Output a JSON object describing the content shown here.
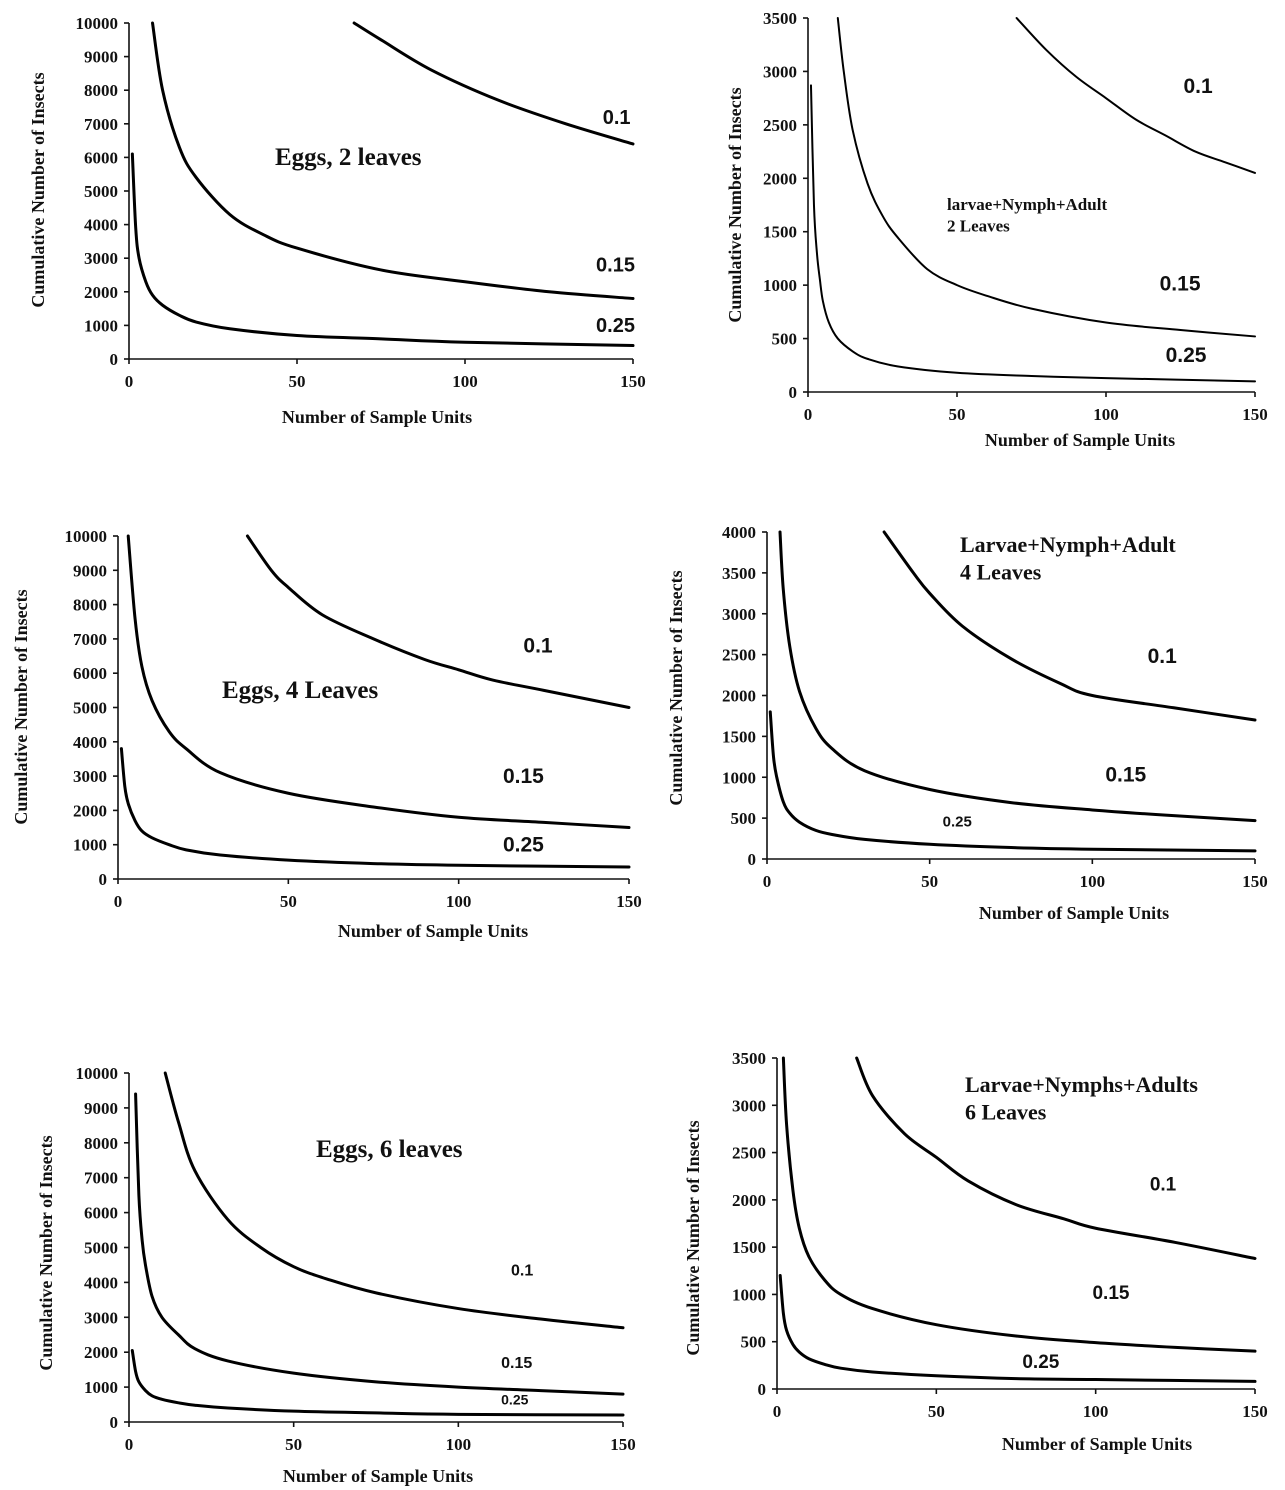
{
  "chart_data": [
    {
      "type": "line",
      "title_lines": [
        "Eggs, 2 leaves"
      ],
      "xlabel": "Number  of Sample Units",
      "ylabel": "Cumulative  Number  of Insects",
      "xlim": [
        0,
        150
      ],
      "ylim": [
        0,
        10000
      ],
      "xticks": [
        0,
        50,
        100,
        150
      ],
      "yticks": [
        0,
        1000,
        2000,
        3000,
        4000,
        5000,
        6000,
        7000,
        8000,
        9000,
        10000
      ],
      "grid": false,
      "series": [
        {
          "label": "0.1",
          "x": [
            67,
            75,
            90,
            110,
            130,
            150
          ],
          "y": [
            10000,
            9500,
            8600,
            7700,
            7000,
            6400
          ]
        },
        {
          "label": "0.15",
          "x": [
            7,
            10,
            15,
            20,
            30,
            40,
            50,
            75,
            100,
            125,
            150
          ],
          "y": [
            10000,
            8000,
            6300,
            5400,
            4300,
            3700,
            3300,
            2650,
            2300,
            2000,
            1800
          ]
        },
        {
          "label": "0.25",
          "x": [
            1,
            2,
            3,
            5,
            7,
            10,
            15,
            20,
            30,
            50,
            75,
            100,
            150
          ],
          "y": [
            6100,
            3900,
            3000,
            2300,
            1900,
            1600,
            1300,
            1100,
            900,
            700,
            600,
            500,
            400
          ]
        }
      ]
    },
    {
      "type": "line",
      "title_lines": [
        "larvae+Nymph+Adult",
        "2 Leaves"
      ],
      "xlabel": "Number  of Sample Units",
      "ylabel": "Cumulative  Number  of Insects",
      "xlim": [
        0,
        150
      ],
      "ylim": [
        0,
        3500
      ],
      "xticks": [
        0,
        50,
        100,
        150
      ],
      "yticks": [
        0,
        500,
        1000,
        1500,
        2000,
        2500,
        3000,
        3500
      ],
      "grid": false,
      "series": [
        {
          "label": "0.1",
          "x": [
            70,
            80,
            90,
            100,
            110,
            120,
            130,
            140,
            150
          ],
          "y": [
            3500,
            3200,
            2950,
            2750,
            2550,
            2400,
            2250,
            2150,
            2050
          ]
        },
        {
          "label": "0.15",
          "x": [
            10,
            12,
            15,
            20,
            25,
            30,
            40,
            50,
            60,
            75,
            100,
            125,
            150
          ],
          "y": [
            3500,
            3000,
            2450,
            1950,
            1650,
            1450,
            1150,
            1000,
            900,
            780,
            650,
            580,
            520
          ]
        },
        {
          "label": "0.25",
          "x": [
            1,
            2,
            3,
            4,
            5,
            7,
            10,
            15,
            20,
            30,
            50,
            75,
            100,
            150
          ],
          "y": [
            2870,
            1750,
            1300,
            1050,
            850,
            650,
            500,
            380,
            310,
            240,
            180,
            150,
            130,
            100
          ]
        }
      ]
    },
    {
      "type": "line",
      "title_lines": [
        "Eggs, 4 Leaves"
      ],
      "xlabel": "Number  of Sample Units",
      "ylabel": "Cumulative  Number  of Insects",
      "xlim": [
        0,
        150
      ],
      "ylim": [
        0,
        10000
      ],
      "xticks": [
        0,
        50,
        100,
        150
      ],
      "yticks": [
        0,
        1000,
        2000,
        3000,
        4000,
        5000,
        6000,
        7000,
        8000,
        9000,
        10000
      ],
      "grid": false,
      "series": [
        {
          "label": "0.1",
          "x": [
            38,
            45,
            50,
            60,
            75,
            90,
            100,
            110,
            125,
            150
          ],
          "y": [
            10000,
            9000,
            8500,
            7700,
            7000,
            6400,
            6100,
            5800,
            5500,
            5000
          ]
        },
        {
          "label": "0.15",
          "x": [
            3,
            5,
            7,
            10,
            15,
            20,
            30,
            50,
            75,
            100,
            125,
            150
          ],
          "y": [
            10000,
            7600,
            6200,
            5200,
            4300,
            3800,
            3100,
            2500,
            2100,
            1800,
            1650,
            1500
          ]
        },
        {
          "label": "0.25",
          "x": [
            1,
            2,
            3,
            5,
            7,
            10,
            15,
            20,
            30,
            50,
            75,
            100,
            150
          ],
          "y": [
            3800,
            2700,
            2200,
            1700,
            1400,
            1200,
            1000,
            850,
            700,
            550,
            450,
            400,
            350
          ]
        }
      ]
    },
    {
      "type": "line",
      "title_lines": [
        "Larvae+Nymph+Adult",
        "4 Leaves"
      ],
      "xlabel": "Number  of Sample Units",
      "ylabel": "Cumulative  Number  of Insects",
      "xlim": [
        0,
        150
      ],
      "ylim": [
        0,
        4000
      ],
      "xticks": [
        0,
        50,
        100,
        150
      ],
      "yticks": [
        0,
        500,
        1000,
        1500,
        2000,
        2500,
        3000,
        3500,
        4000
      ],
      "grid": false,
      "series": [
        {
          "label": "0.1",
          "x": [
            36,
            45,
            50,
            60,
            75,
            90,
            100,
            125,
            150
          ],
          "y": [
            4000,
            3500,
            3250,
            2850,
            2450,
            2150,
            2000,
            1850,
            1700
          ]
        },
        {
          "label": "0.15",
          "x": [
            4,
            5,
            7,
            10,
            15,
            20,
            30,
            50,
            75,
            100,
            125,
            150
          ],
          "y": [
            4000,
            3300,
            2600,
            2050,
            1600,
            1350,
            1080,
            850,
            690,
            600,
            530,
            470
          ]
        },
        {
          "label": "0.25",
          "x": [
            1,
            2,
            3,
            5,
            7,
            10,
            15,
            20,
            30,
            50,
            75,
            100,
            150
          ],
          "y": [
            1800,
            1250,
            1000,
            700,
            560,
            450,
            350,
            300,
            240,
            180,
            140,
            120,
            100
          ]
        }
      ]
    },
    {
      "type": "line",
      "title_lines": [
        "Eggs, 6 leaves"
      ],
      "xlabel": "Number  of Sample Units",
      "ylabel": "Cumulative  Number  of Insects",
      "xlim": [
        0,
        150
      ],
      "ylim": [
        0,
        10000
      ],
      "xticks": [
        0,
        50,
        100,
        150
      ],
      "yticks": [
        0,
        1000,
        2000,
        3000,
        4000,
        5000,
        6000,
        7000,
        8000,
        9000,
        10000
      ],
      "grid": false,
      "series": [
        {
          "label": "0.1",
          "x": [
            11,
            15,
            20,
            30,
            40,
            50,
            60,
            75,
            100,
            125,
            150
          ],
          "y": [
            10000,
            8600,
            7200,
            5800,
            5000,
            4450,
            4100,
            3700,
            3250,
            2950,
            2700
          ]
        },
        {
          "label": "0.15",
          "x": [
            2,
            3,
            4,
            5,
            7,
            10,
            15,
            20,
            30,
            50,
            75,
            100,
            125,
            150
          ],
          "y": [
            9400,
            6500,
            5200,
            4500,
            3600,
            3000,
            2500,
            2100,
            1750,
            1400,
            1150,
            1000,
            900,
            800
          ]
        },
        {
          "label": "0.25",
          "x": [
            1,
            2,
            3,
            5,
            7,
            10,
            15,
            20,
            30,
            50,
            75,
            100,
            150
          ],
          "y": [
            2050,
            1450,
            1150,
            900,
            750,
            650,
            550,
            480,
            400,
            310,
            260,
            220,
            200
          ]
        }
      ]
    },
    {
      "type": "line",
      "title_lines": [
        "Larvae+Nymphs+Adults",
        "6 Leaves"
      ],
      "xlabel": "Number  of Sample Units",
      "ylabel": "Cumulative  Number  of Insects",
      "xlim": [
        0,
        150
      ],
      "ylim": [
        0,
        3500
      ],
      "xticks": [
        0,
        50,
        100,
        150
      ],
      "yticks": [
        0,
        500,
        1000,
        1500,
        2000,
        2500,
        3000,
        3500
      ],
      "grid": false,
      "series": [
        {
          "label": "0.1",
          "x": [
            25,
            30,
            40,
            50,
            60,
            75,
            90,
            100,
            125,
            150
          ],
          "y": [
            3500,
            3100,
            2700,
            2450,
            2200,
            1950,
            1800,
            1700,
            1550,
            1380
          ]
        },
        {
          "label": "0.15",
          "x": [
            2,
            3,
            5,
            7,
            10,
            15,
            20,
            30,
            50,
            75,
            100,
            125,
            150
          ],
          "y": [
            3500,
            2800,
            2100,
            1700,
            1400,
            1150,
            1000,
            850,
            680,
            560,
            490,
            440,
            400
          ]
        },
        {
          "label": "0.25",
          "x": [
            1,
            2,
            3,
            5,
            7,
            10,
            15,
            20,
            30,
            50,
            75,
            100,
            150
          ],
          "y": [
            1200,
            800,
            620,
            470,
            390,
            320,
            260,
            220,
            180,
            140,
            110,
            100,
            80
          ]
        }
      ]
    }
  ]
}
